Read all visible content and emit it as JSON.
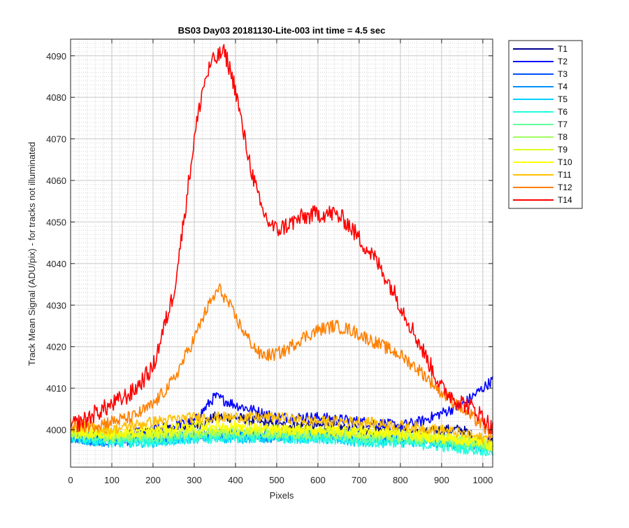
{
  "chart_data": {
    "type": "line",
    "title": "BS03 Day03 20181130-Lite-003 int time = 4.5 sec",
    "xlabel": "Pixels",
    "ylabel": "Track Mean Signal (ADU/pix) - for tracks not illuminated",
    "xlim": [
      0,
      1024
    ],
    "ylim": [
      3991,
      4094
    ],
    "xticks": [
      0,
      100,
      200,
      300,
      400,
      500,
      600,
      700,
      800,
      900,
      1000
    ],
    "yticks": [
      4000,
      4010,
      4020,
      4030,
      4040,
      4050,
      4060,
      4070,
      4080,
      4090
    ],
    "y_minor_step": 1,
    "grid": true,
    "legend_position": "outside-right",
    "noise_note_free": true,
    "series": [
      {
        "name": "T1",
        "color": "#00008f",
        "x": [
          0,
          100,
          200,
          300,
          350,
          400,
          500,
          600,
          700,
          800,
          850,
          900,
          950,
          1000,
          1024
        ],
        "y": [
          3999,
          3998,
          3999,
          4001,
          4003,
          4003,
          4001,
          4001,
          4000,
          4000,
          3999,
          4000,
          4000,
          3997,
          3997
        ]
      },
      {
        "name": "T2",
        "color": "#0000ff",
        "x": [
          0,
          100,
          200,
          300,
          350,
          400,
          500,
          600,
          700,
          800,
          850,
          900,
          950,
          1000,
          1024
        ],
        "y": [
          3999,
          3998,
          4000,
          4002,
          4008,
          4006,
          4003,
          4003,
          4002,
          4001,
          4002,
          4004,
          4006,
          4010,
          4012
        ]
      },
      {
        "name": "T3",
        "color": "#0050ff",
        "x": [
          0,
          100,
          200,
          300,
          400,
          500,
          600,
          700,
          800,
          900,
          1000,
          1024
        ],
        "y": [
          3998,
          3997,
          3998,
          3999,
          3999,
          3999,
          3999,
          3998,
          3998,
          3997,
          3996,
          3996
        ]
      },
      {
        "name": "T4",
        "color": "#0090ff",
        "x": [
          0,
          100,
          200,
          300,
          400,
          500,
          600,
          700,
          800,
          900,
          1000,
          1024
        ],
        "y": [
          3998,
          3997,
          3998,
          3998,
          3999,
          3998,
          3999,
          3998,
          3998,
          3997,
          3996,
          3996
        ]
      },
      {
        "name": "T5",
        "color": "#00d0ff",
        "x": [
          0,
          100,
          200,
          300,
          400,
          500,
          600,
          700,
          800,
          900,
          1000,
          1024
        ],
        "y": [
          3998,
          3997,
          3997,
          3998,
          3998,
          3998,
          3998,
          3997,
          3997,
          3997,
          3996,
          3995
        ]
      },
      {
        "name": "T6",
        "color": "#20ffdf",
        "x": [
          0,
          100,
          200,
          300,
          400,
          500,
          600,
          700,
          800,
          900,
          1000,
          1024
        ],
        "y": [
          3998,
          3997,
          3997,
          3998,
          3998,
          3998,
          3998,
          3997,
          3997,
          3996,
          3995,
          3995
        ]
      },
      {
        "name": "T7",
        "color": "#60ff9f",
        "x": [
          0,
          100,
          200,
          300,
          400,
          500,
          600,
          700,
          800,
          900,
          1000,
          1024
        ],
        "y": [
          3999,
          3998,
          3998,
          3999,
          3999,
          3999,
          3999,
          3998,
          3998,
          3997,
          3996,
          3996
        ]
      },
      {
        "name": "T8",
        "color": "#9fff60",
        "x": [
          0,
          100,
          200,
          300,
          400,
          500,
          600,
          700,
          800,
          900,
          1000,
          1024
        ],
        "y": [
          3999,
          3998,
          3999,
          3999,
          4000,
          3999,
          3999,
          3999,
          3998,
          3998,
          3997,
          3996
        ]
      },
      {
        "name": "T9",
        "color": "#dfff20",
        "x": [
          0,
          100,
          200,
          300,
          400,
          500,
          600,
          700,
          800,
          900,
          1000,
          1024
        ],
        "y": [
          3999,
          3999,
          3999,
          4000,
          4000,
          4000,
          4000,
          3999,
          3999,
          3998,
          3997,
          3996
        ]
      },
      {
        "name": "T10",
        "color": "#ffff00",
        "x": [
          0,
          100,
          200,
          300,
          400,
          500,
          600,
          700,
          800,
          900,
          1000,
          1024
        ],
        "y": [
          4000,
          3999,
          4000,
          4001,
          4001,
          4000,
          4000,
          4000,
          3999,
          3998,
          3997,
          3996
        ]
      },
      {
        "name": "T11",
        "color": "#ffbf00",
        "x": [
          0,
          100,
          200,
          300,
          350,
          400,
          500,
          600,
          700,
          800,
          900,
          1000,
          1024
        ],
        "y": [
          4001,
          4000,
          4002,
          4003,
          4003,
          4003,
          4003,
          4002,
          4002,
          4001,
          4000,
          3998,
          3998
        ]
      },
      {
        "name": "T12",
        "color": "#ff8000",
        "x": [
          0,
          50,
          100,
          150,
          200,
          250,
          300,
          330,
          360,
          380,
          400,
          430,
          460,
          490,
          520,
          560,
          600,
          640,
          680,
          720,
          760,
          800,
          850,
          900,
          950,
          1000,
          1024
        ],
        "y": [
          4001,
          4001,
          4002,
          4003,
          4006,
          4012,
          4022,
          4029,
          4034,
          4031,
          4027,
          4022,
          4018,
          4018,
          4019,
          4022,
          4024,
          4025,
          4024,
          4022,
          4020,
          4018,
          4014,
          4009,
          4005,
          4001,
          3998
        ]
      },
      {
        "name": "T14",
        "color": "#ff0000",
        "x": [
          0,
          30,
          60,
          100,
          150,
          200,
          250,
          270,
          300,
          320,
          340,
          360,
          370,
          380,
          400,
          420,
          440,
          460,
          480,
          500,
          520,
          560,
          600,
          640,
          670,
          700,
          740,
          780,
          820,
          860,
          900,
          940,
          980,
          1010,
          1024
        ],
        "y": [
          4001,
          4002,
          4004,
          4006,
          4009,
          4015,
          4033,
          4047,
          4070,
          4082,
          4088,
          4090,
          4091,
          4089,
          4082,
          4071,
          4062,
          4054,
          4050,
          4048,
          4049,
          4051,
          4052,
          4052,
          4050,
          4046,
          4041,
          4034,
          4026,
          4018,
          4010,
          4007,
          4005,
          4002,
          4000
        ]
      }
    ]
  }
}
